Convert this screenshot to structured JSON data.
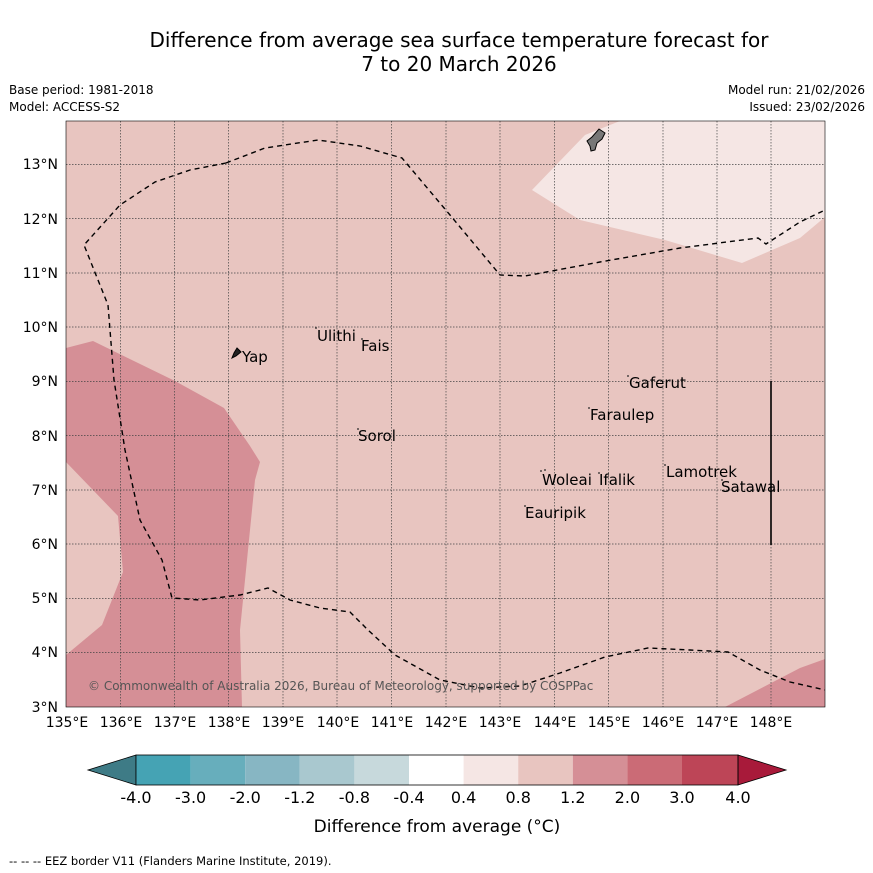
{
  "title": {
    "line1": "Difference from average sea surface temperature forecast for",
    "line2": "7 to 20 March 2026"
  },
  "meta": {
    "base_period": "Base period: 1981-2018",
    "model": "Model: ACCESS-S2",
    "model_run": "Model run: 21/02/2026",
    "issued": "Issued: 23/02/2026"
  },
  "map": {
    "lon_range": [
      135,
      149
    ],
    "lat_range": [
      3,
      13.8
    ],
    "lon_ticks": [
      "135°E",
      "136°E",
      "137°E",
      "138°E",
      "139°E",
      "140°E",
      "141°E",
      "142°E",
      "143°E",
      "144°E",
      "145°E",
      "146°E",
      "147°E",
      "148°E"
    ],
    "lat_ticks": [
      "3°N",
      "4°N",
      "5°N",
      "6°N",
      "7°N",
      "8°N",
      "9°N",
      "10°N",
      "11°N",
      "12°N",
      "13°N"
    ],
    "places": [
      {
        "name": "Yap",
        "lon": 138.1,
        "lat": 9.5
      },
      {
        "name": "Ulithi",
        "lon": 139.7,
        "lat": 9.9
      },
      {
        "name": "Fais",
        "lon": 140.5,
        "lat": 9.75
      },
      {
        "name": "Sorol",
        "lon": 140.4,
        "lat": 8.1
      },
      {
        "name": "Gaferut",
        "lon": 145.4,
        "lat": 9.2
      },
      {
        "name": "Faraulep",
        "lon": 144.6,
        "lat": 8.6
      },
      {
        "name": "Woleai",
        "lon": 143.9,
        "lat": 7.4
      },
      {
        "name": "Ifalik",
        "lon": 144.45,
        "lat": 7.25
      },
      {
        "name": "Eauripik",
        "lon": 143.05,
        "lat": 6.68
      },
      {
        "name": "Lamotrek",
        "lon": 146.35,
        "lat": 7.5
      },
      {
        "name": "Satawal",
        "lon": 147.05,
        "lat": 7.35
      }
    ],
    "copyright": "© Commonwealth of Australia 2026, Bureau of Meteorology, supported by COSPPac"
  },
  "colorbar": {
    "title": "Difference from average (°C)",
    "tick_labels": [
      "-4.0",
      "-3.0",
      "-2.0",
      "-1.2",
      "-0.8",
      "-0.4",
      "0.4",
      "0.8",
      "1.2",
      "2.0",
      "3.0",
      "4.0"
    ],
    "colors": {
      "under": "#3e7b86",
      "bins": [
        "#45a3b4",
        "#67aebc",
        "#87b6c3",
        "#a9c8cf",
        "#c7d9dc",
        "#ffffff",
        "#f5e6e4",
        "#e8c5c0",
        "#d58f96",
        "#cb6b76",
        "#bd4557"
      ],
      "over": "#a81a3a"
    }
  },
  "footnote": "-- -- -- EEZ border V11 (Flanders Marine Institute, 2019)."
}
